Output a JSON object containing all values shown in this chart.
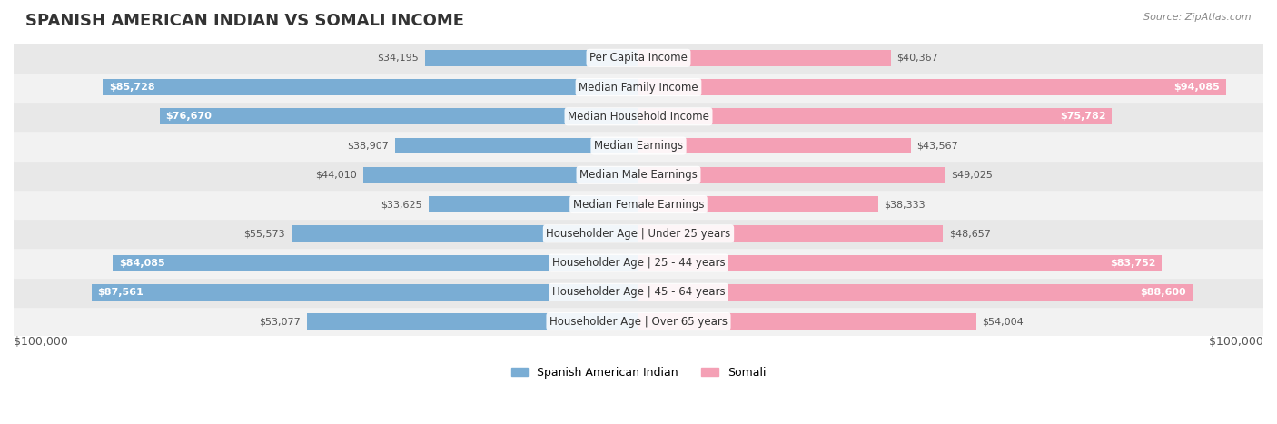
{
  "title": "SPANISH AMERICAN INDIAN VS SOMALI INCOME",
  "source": "Source: ZipAtlas.com",
  "categories": [
    "Per Capita Income",
    "Median Family Income",
    "Median Household Income",
    "Median Earnings",
    "Median Male Earnings",
    "Median Female Earnings",
    "Householder Age | Under 25 years",
    "Householder Age | 25 - 44 years",
    "Householder Age | 45 - 64 years",
    "Householder Age | Over 65 years"
  ],
  "left_values": [
    34195,
    85728,
    76670,
    38907,
    44010,
    33625,
    55573,
    84085,
    87561,
    53077
  ],
  "right_values": [
    40367,
    94085,
    75782,
    43567,
    49025,
    38333,
    48657,
    83752,
    88600,
    54004
  ],
  "left_labels": [
    "$34,195",
    "$85,728",
    "$76,670",
    "$38,907",
    "$44,010",
    "$33,625",
    "$55,573",
    "$84,085",
    "$87,561",
    "$53,077"
  ],
  "right_labels": [
    "$40,367",
    "$94,085",
    "$75,782",
    "$43,567",
    "$49,025",
    "$38,333",
    "$48,657",
    "$83,752",
    "$88,600",
    "$54,004"
  ],
  "max_value": 100000,
  "left_color": "#7aadd4",
  "right_color": "#f4a0b5",
  "left_label_color_inside": "#ffffff",
  "left_label_color_outside": "#555555",
  "right_label_color_inside": "#ffffff",
  "right_label_color_outside": "#555555",
  "background_color": "#ffffff",
  "row_bg_colors": [
    "#f2f2f2",
    "#e8e8e8"
  ],
  "bar_height": 0.55,
  "legend_left": "Spanish American Indian",
  "legend_right": "Somali",
  "xlabel_left": "$100,000",
  "xlabel_right": "$100,000",
  "inside_threshold": 60000
}
